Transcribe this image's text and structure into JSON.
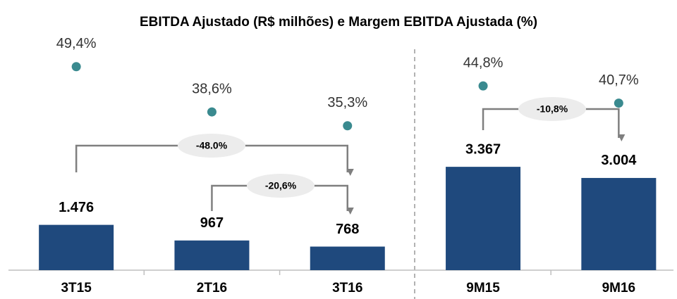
{
  "chart_data": {
    "type": "bar",
    "title": "EBITDA Ajustado (R$ milhões) e Margem EBITDA Ajustada (%)",
    "categories": [
      "3T15",
      "2T16",
      "3T16",
      "9M15",
      "9M16"
    ],
    "series": [
      {
        "type": "bar",
        "color": "#1f497d",
        "values": [
          1476,
          967,
          768,
          3367,
          3004
        ],
        "value_labels": [
          "1.476",
          "967",
          "768",
          "3.367",
          "3.004"
        ]
      },
      {
        "type": "scatter",
        "axis": "y2",
        "color": "#3a8a8f",
        "values": [
          49.4,
          38.6,
          35.3,
          44.8,
          40.7
        ],
        "value_labels": [
          "49,4%",
          "38,6%",
          "35,3%",
          "44,8%",
          "40,7%"
        ]
      }
    ],
    "ylim": [
      0,
      8000
    ],
    "y2lim": [
      0,
      60
    ],
    "annotations": [
      "-48.0%",
      "-20,6%",
      "-10,8%"
    ]
  }
}
